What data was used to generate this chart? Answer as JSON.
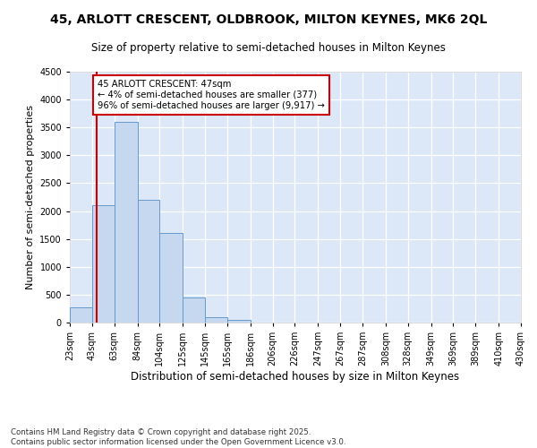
{
  "title_line1": "45, ARLOTT CRESCENT, OLDBROOK, MILTON KEYNES, MK6 2QL",
  "title_line2": "Size of property relative to semi-detached houses in Milton Keynes",
  "xlabel": "Distribution of semi-detached houses by size in Milton Keynes",
  "ylabel": "Number of semi-detached properties",
  "bin_labels": [
    "23sqm",
    "43sqm",
    "63sqm",
    "84sqm",
    "104sqm",
    "125sqm",
    "145sqm",
    "165sqm",
    "186sqm",
    "206sqm",
    "226sqm",
    "247sqm",
    "267sqm",
    "287sqm",
    "308sqm",
    "328sqm",
    "349sqm",
    "369sqm",
    "389sqm",
    "410sqm",
    "430sqm"
  ],
  "bar_heights": [
    270,
    2100,
    3600,
    2200,
    1600,
    450,
    100,
    50,
    0,
    0,
    0,
    0,
    0,
    0,
    0,
    0,
    0,
    0,
    0,
    0
  ],
  "property_line_x": 47,
  "bin_edges_values": [
    23,
    43,
    63,
    84,
    104,
    125,
    145,
    165,
    186,
    206,
    226,
    247,
    267,
    287,
    308,
    328,
    349,
    369,
    389,
    410,
    430
  ],
  "bar_color": "#c5d8f0",
  "bar_edge_color": "#6699cc",
  "property_line_color": "#cc0000",
  "annotation_box_color": "#cc0000",
  "annotation_text": "45 ARLOTT CRESCENT: 47sqm\n← 4% of semi-detached houses are smaller (377)\n96% of semi-detached houses are larger (9,917) →",
  "ylim": [
    0,
    4500
  ],
  "background_color": "#dce8f8",
  "grid_color": "#ffffff",
  "fig_background": "#ffffff",
  "footer_line1": "Contains HM Land Registry data © Crown copyright and database right 2025.",
  "footer_line2": "Contains public sector information licensed under the Open Government Licence v3.0."
}
